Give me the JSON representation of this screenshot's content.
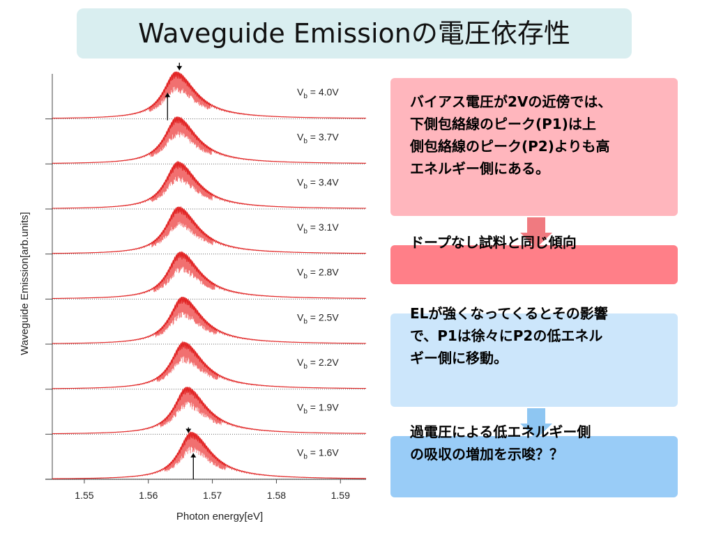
{
  "title": "Waveguide Emissionの電圧依存性",
  "chart_data": {
    "type": "line",
    "xlabel": "Photon energy[eV]",
    "ylabel": "Waveguide Emission[arb.units]",
    "xlim": [
      1.545,
      1.594
    ],
    "xticks": [
      "1.55",
      "1.56",
      "1.57",
      "1.58",
      "1.59"
    ],
    "xtick_values": [
      1.55,
      1.56,
      1.57,
      1.58,
      1.59
    ],
    "series": [
      {
        "name": "Vb = 4.0V",
        "label_main": "V",
        "label_sub": "b",
        "label_rest": " = 4.0V",
        "peak_ev": 1.5643
      },
      {
        "name": "Vb = 3.7V",
        "label_main": "V",
        "label_sub": "b",
        "label_rest": " = 3.7V",
        "peak_ev": 1.5645
      },
      {
        "name": "Vb = 3.4V",
        "label_main": "V",
        "label_sub": "b",
        "label_rest": " = 3.4V",
        "peak_ev": 1.5646
      },
      {
        "name": "Vb = 3.1V",
        "label_main": "V",
        "label_sub": "b",
        "label_rest": " = 3.1V",
        "peak_ev": 1.5647
      },
      {
        "name": "Vb = 2.8V",
        "label_main": "V",
        "label_sub": "b",
        "label_rest": " = 2.8V",
        "peak_ev": 1.565
      },
      {
        "name": "Vb = 2.5V",
        "label_main": "V",
        "label_sub": "b",
        "label_rest": " = 2.5V",
        "peak_ev": 1.5653
      },
      {
        "name": "Vb = 2.2V",
        "label_main": "V",
        "label_sub": "b",
        "label_rest": " = 2.2V",
        "peak_ev": 1.5655
      },
      {
        "name": "Vb = 1.9V",
        "label_main": "V",
        "label_sub": "b",
        "label_rest": " = 1.9V",
        "peak_ev": 1.566
      },
      {
        "name": "Vb = 1.6V",
        "label_main": "V",
        "label_sub": "b",
        "label_rest": " = 1.6V",
        "peak_ev": 1.5667
      }
    ],
    "line_color": "#e02020",
    "fill_color": "#f06060",
    "baseline_color": "#555555",
    "grid": false
  },
  "notes": [
    {
      "text_lines": [
        "バイアス電圧が2Vの近傍では、",
        "下側包絡線のピーク(P1)は上",
        "側包絡線のピーク(P2)よりも高",
        "エネルギー側にある。"
      ]
    },
    {
      "text_lines": [
        "ドープなし試料と同じ傾向"
      ]
    },
    {
      "text_lines": [
        "ELが強くなってくるとその影響",
        "で、P1は徐々にP2の低エネル",
        "ギー側に移動。"
      ]
    },
    {
      "text_lines": [
        "過電圧による低エネルギー側",
        "の吸収の増加を示唆？？"
      ]
    }
  ],
  "colors": {
    "title_bg": "#d9eef0",
    "box1": "#ffb6bd",
    "box2": "#ff7f88",
    "box3": "#cce6fb",
    "box4": "#99ccf7",
    "arrow_red": "#f07a80",
    "arrow_blue": "#8ec6f2"
  }
}
